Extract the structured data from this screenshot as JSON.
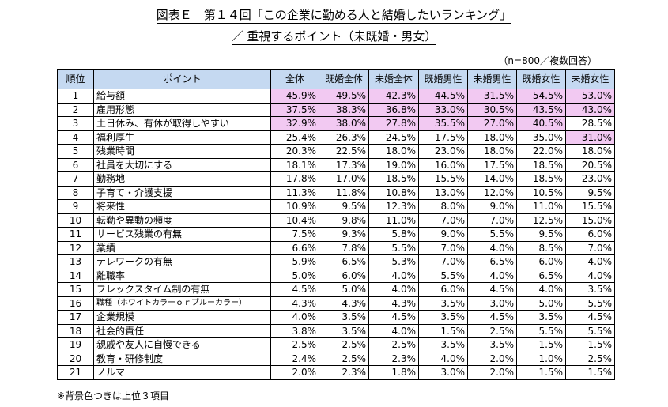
{
  "title": "図表Ｅ　第１４回「この企業に勤める人と結婚したいランキング」",
  "subtitle": "／ 重視するポイント（未既婚・男女）",
  "note": "（n=800／複数回答）",
  "footnote": "※背景色つきは上位３項目",
  "highlight_color": "#f2c9f2",
  "header_color": "#c5d9f1",
  "headers": [
    "順位",
    "ポイント",
    "全体",
    "既婚全体",
    "未婚全体",
    "既婚男性",
    "未婚男性",
    "既婚女性",
    "未婚女性"
  ],
  "rows": [
    {
      "rank": "1",
      "point": "給与額",
      "values": [
        "45.9%",
        "49.5%",
        "42.3%",
        "44.5%",
        "31.5%",
        "54.5%",
        "53.0%"
      ],
      "hl": [
        1,
        1,
        1,
        1,
        1,
        1,
        1
      ]
    },
    {
      "rank": "2",
      "point": "雇用形態",
      "values": [
        "37.5%",
        "38.3%",
        "36.8%",
        "33.0%",
        "30.5%",
        "43.5%",
        "43.0%"
      ],
      "hl": [
        1,
        1,
        1,
        1,
        1,
        1,
        1
      ]
    },
    {
      "rank": "3",
      "point": "土日休み、有休が取得しやすい",
      "values": [
        "32.9%",
        "38.0%",
        "27.8%",
        "35.5%",
        "27.0%",
        "40.5%",
        "28.5%"
      ],
      "hl": [
        1,
        1,
        1,
        1,
        1,
        1,
        0
      ]
    },
    {
      "rank": "4",
      "point": "福利厚生",
      "values": [
        "25.4%",
        "26.3%",
        "24.5%",
        "17.5%",
        "18.0%",
        "35.0%",
        "31.0%"
      ],
      "hl": [
        0,
        0,
        0,
        0,
        0,
        0,
        1
      ]
    },
    {
      "rank": "5",
      "point": "残業時間",
      "values": [
        "20.3%",
        "22.5%",
        "18.0%",
        "23.0%",
        "18.0%",
        "22.0%",
        "18.0%"
      ],
      "hl": [
        0,
        0,
        0,
        0,
        0,
        0,
        0
      ]
    },
    {
      "rank": "6",
      "point": "社員を大切にする",
      "values": [
        "18.1%",
        "17.3%",
        "19.0%",
        "16.0%",
        "17.5%",
        "18.5%",
        "20.5%"
      ],
      "hl": [
        0,
        0,
        0,
        0,
        0,
        0,
        0
      ]
    },
    {
      "rank": "7",
      "point": "勤務地",
      "values": [
        "17.8%",
        "17.0%",
        "18.5%",
        "15.5%",
        "14.0%",
        "18.5%",
        "23.0%"
      ],
      "hl": [
        0,
        0,
        0,
        0,
        0,
        0,
        0
      ]
    },
    {
      "rank": "8",
      "point": "子育て・介護支援",
      "values": [
        "11.3%",
        "11.8%",
        "10.8%",
        "13.0%",
        "12.0%",
        "10.5%",
        "9.5%"
      ],
      "hl": [
        0,
        0,
        0,
        0,
        0,
        0,
        0
      ]
    },
    {
      "rank": "9",
      "point": "将来性",
      "values": [
        "10.9%",
        "9.5%",
        "12.3%",
        "8.0%",
        "9.0%",
        "11.0%",
        "15.5%"
      ],
      "hl": [
        0,
        0,
        0,
        0,
        0,
        0,
        0
      ]
    },
    {
      "rank": "10",
      "point": "転勤や異動の頻度",
      "values": [
        "10.4%",
        "9.8%",
        "11.0%",
        "7.0%",
        "7.0%",
        "12.5%",
        "15.0%"
      ],
      "hl": [
        0,
        0,
        0,
        0,
        0,
        0,
        0
      ]
    },
    {
      "rank": "11",
      "point": "サービス残業の有無",
      "values": [
        "7.5%",
        "9.3%",
        "5.8%",
        "9.0%",
        "5.5%",
        "9.5%",
        "6.0%"
      ],
      "hl": [
        0,
        0,
        0,
        0,
        0,
        0,
        0
      ]
    },
    {
      "rank": "12",
      "point": "業績",
      "values": [
        "6.6%",
        "7.8%",
        "5.5%",
        "7.0%",
        "4.0%",
        "8.5%",
        "7.0%"
      ],
      "hl": [
        0,
        0,
        0,
        0,
        0,
        0,
        0
      ]
    },
    {
      "rank": "13",
      "point": "テレワークの有無",
      "values": [
        "5.9%",
        "6.5%",
        "5.3%",
        "7.0%",
        "6.5%",
        "6.0%",
        "4.0%"
      ],
      "hl": [
        0,
        0,
        0,
        0,
        0,
        0,
        0
      ]
    },
    {
      "rank": "14",
      "point": "離職率",
      "values": [
        "5.0%",
        "6.0%",
        "4.0%",
        "5.5%",
        "4.0%",
        "6.5%",
        "4.0%"
      ],
      "hl": [
        0,
        0,
        0,
        0,
        0,
        0,
        0
      ]
    },
    {
      "rank": "15",
      "point": "フレックスタイム制の有無",
      "values": [
        "4.5%",
        "5.0%",
        "4.0%",
        "6.0%",
        "4.5%",
        "4.0%",
        "3.5%"
      ],
      "hl": [
        0,
        0,
        0,
        0,
        0,
        0,
        0
      ]
    },
    {
      "rank": "16",
      "point": "職種（ホワイトカラーｏｒブルーカラー）",
      "values": [
        "4.3%",
        "4.3%",
        "4.3%",
        "3.5%",
        "3.0%",
        "5.0%",
        "5.5%"
      ],
      "hl": [
        0,
        0,
        0,
        0,
        0,
        0,
        0
      ],
      "small": true
    },
    {
      "rank": "17",
      "point": "企業規模",
      "values": [
        "4.0%",
        "3.5%",
        "4.5%",
        "3.5%",
        "4.5%",
        "3.5%",
        "4.5%"
      ],
      "hl": [
        0,
        0,
        0,
        0,
        0,
        0,
        0
      ]
    },
    {
      "rank": "18",
      "point": "社会的責任",
      "values": [
        "3.8%",
        "3.5%",
        "4.0%",
        "1.5%",
        "2.5%",
        "5.5%",
        "5.5%"
      ],
      "hl": [
        0,
        0,
        0,
        0,
        0,
        0,
        0
      ]
    },
    {
      "rank": "19",
      "point": "親戚や友人に自慢できる",
      "values": [
        "2.5%",
        "2.5%",
        "2.5%",
        "3.5%",
        "3.5%",
        "1.5%",
        "1.5%"
      ],
      "hl": [
        0,
        0,
        0,
        0,
        0,
        0,
        0
      ]
    },
    {
      "rank": "20",
      "point": "教育・研修制度",
      "values": [
        "2.4%",
        "2.5%",
        "2.3%",
        "4.0%",
        "2.0%",
        "1.0%",
        "2.5%"
      ],
      "hl": [
        0,
        0,
        0,
        0,
        0,
        0,
        0
      ]
    },
    {
      "rank": "21",
      "point": "ノルマ",
      "values": [
        "2.0%",
        "2.3%",
        "1.8%",
        "3.0%",
        "2.0%",
        "1.5%",
        "1.5%"
      ],
      "hl": [
        0,
        0,
        0,
        0,
        0,
        0,
        0
      ]
    }
  ]
}
